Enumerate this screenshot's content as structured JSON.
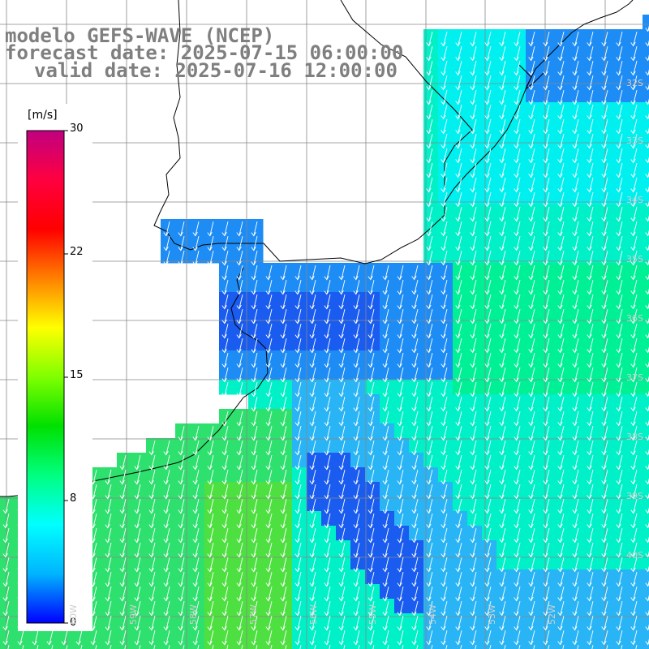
{
  "title": {
    "model": "modelo GEFS-WAVE (NCEP)",
    "forecast": "forecast date: 2025-07-15 06:00:00",
    "valid": "valid date: 2025-07-16 12:00:00"
  },
  "colorbar": {
    "units": "[m/s]",
    "min": 0,
    "max": 30,
    "ticks": [
      {
        "value": 30,
        "label": "30"
      },
      {
        "value": 22,
        "label": "22"
      },
      {
        "value": 15,
        "label": "15"
      },
      {
        "value": 8,
        "label": "8"
      },
      {
        "value": 0,
        "label": "0"
      }
    ],
    "stops": [
      "#0000ff",
      "#00b4ff",
      "#00ffff",
      "#00ff80",
      "#00e000",
      "#80ff00",
      "#ffff00",
      "#ff8000",
      "#ff0000",
      "#ff0040",
      "#c00080"
    ]
  },
  "axes": {
    "lat_labels": [
      "32S",
      "33S",
      "34S",
      "35S",
      "36S",
      "37S",
      "38S",
      "39S",
      "40S"
    ],
    "lon_labels": [
      "60W",
      "59W",
      "58W",
      "57W",
      "56W",
      "55W",
      "54W",
      "53W",
      "52W"
    ]
  },
  "colors": {
    "deep_blue": "#1a5cf0",
    "blue": "#1e8cf5",
    "light_blue": "#28b4f5",
    "cyan": "#00f0f0",
    "aqua": "#00f0c8",
    "sea_green": "#00f096",
    "green": "#2ee06e",
    "bright_green": "#4ee040",
    "grid": "#888888",
    "coast": "#000000"
  }
}
